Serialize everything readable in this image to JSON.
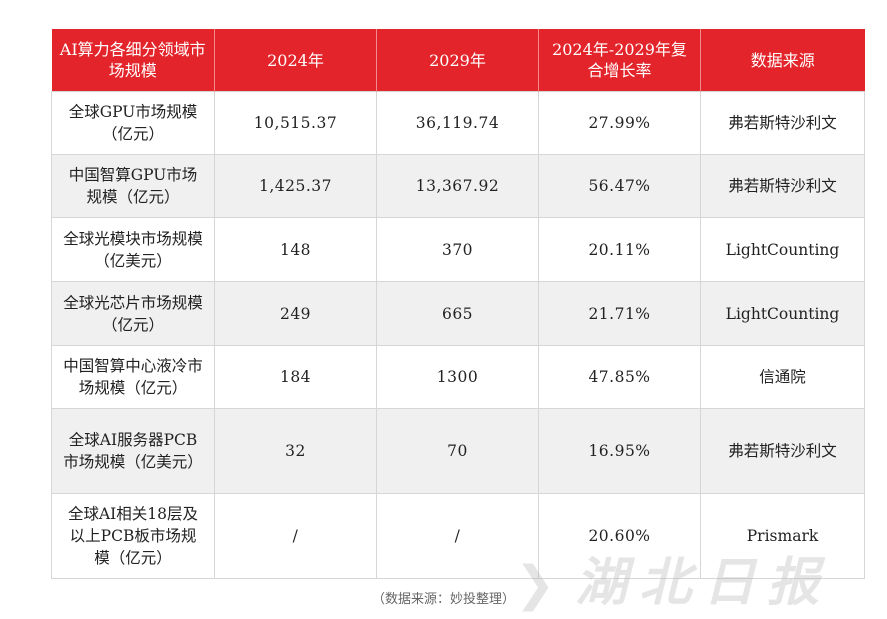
{
  "table": {
    "headers": [
      "AI算力各细分领域市场规模",
      "2024年",
      "2029年",
      "2024年-2029年复合增长率",
      "数据来源"
    ],
    "rows": [
      [
        "全球GPU市场规模（亿元）",
        "10,515.37",
        "36,119.74",
        "27.99%",
        "弗若斯特沙利文"
      ],
      [
        "中国智算GPU市场规模（亿元）",
        "1,425.37",
        "13,367.92",
        "56.47%",
        "弗若斯特沙利文"
      ],
      [
        "全球光模块市场规模（亿美元）",
        "148",
        "370",
        "20.11%",
        "LightCounting"
      ],
      [
        "全球光芯片市场规模（亿元）",
        "249",
        "665",
        "21.71%",
        "LightCounting"
      ],
      [
        "中国智算中心液冷市场规模（亿元）",
        "184",
        "1300",
        "47.85%",
        "信通院"
      ],
      [
        "全球AI服务器PCB市场规模（亿美元）",
        "32",
        "70",
        "16.95%",
        "弗若斯特沙利文"
      ],
      [
        "全球AI相关18层及以上PCB板市场规模（亿元）",
        "/",
        "/",
        "20.60%",
        "Prismark"
      ]
    ]
  },
  "caption": "（数据来源：妙投整理）",
  "watermark": {
    "text": "湖北日报",
    "icon": "logo-icon"
  },
  "colors": {
    "header_bg": "#e3252b",
    "alt_row_bg": "#f0f0f0"
  }
}
